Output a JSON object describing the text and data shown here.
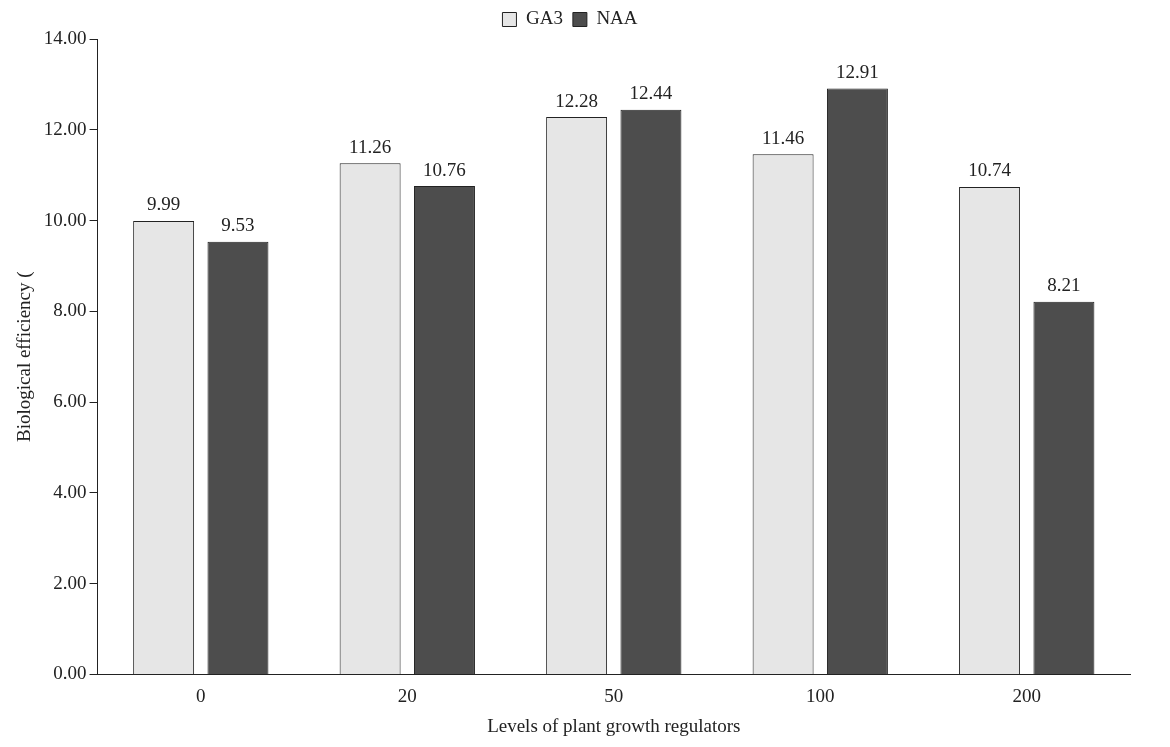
{
  "chart_data": {
    "type": "bar",
    "xlabel": "Levels of plant growth regulators",
    "ylabel": "Biological efficiency (",
    "categories": [
      "0",
      "20",
      "50",
      "100",
      "200"
    ],
    "series": [
      {
        "name": "GA3",
        "color": "#e6e6e6",
        "values": [
          9.99,
          11.26,
          12.28,
          11.46,
          10.74
        ]
      },
      {
        "name": "NAA",
        "color": "#4d4d4d",
        "values": [
          9.53,
          10.76,
          12.44,
          12.91,
          8.21
        ]
      }
    ],
    "ylim": [
      0,
      14
    ],
    "yticks": [
      {
        "value": 0,
        "label": "0.00"
      },
      {
        "value": 2,
        "label": "2.00"
      },
      {
        "value": 4,
        "label": "4.00"
      },
      {
        "value": 6,
        "label": "6.00"
      },
      {
        "value": 8,
        "label": "8.00"
      },
      {
        "value": 10,
        "label": "10.00"
      },
      {
        "value": 12,
        "label": "12.00"
      },
      {
        "value": 14,
        "label": "14.00"
      }
    ],
    "grid": false,
    "legend": "top",
    "data_labels": true
  }
}
